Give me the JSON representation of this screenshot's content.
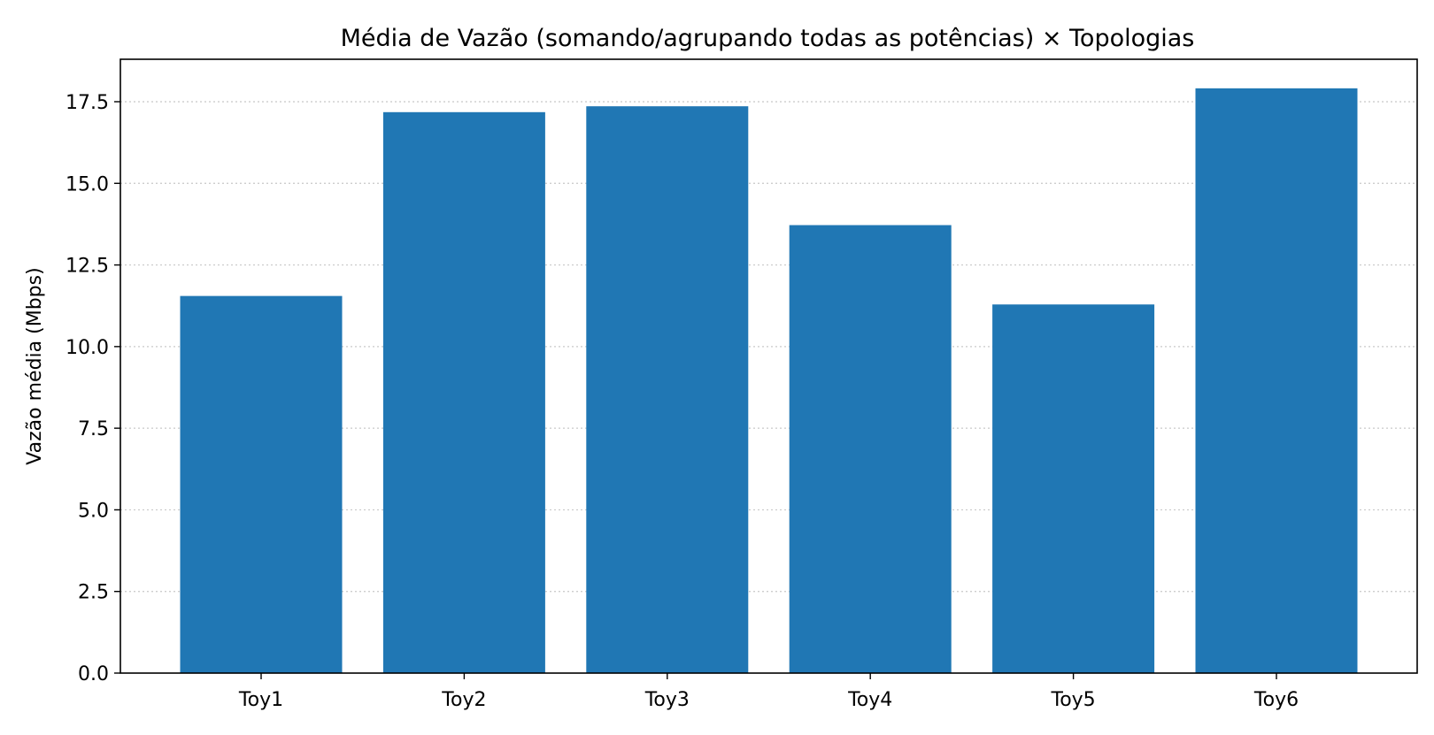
{
  "chart_data": {
    "type": "bar",
    "title": "Média de Vazão (somando/agrupando todas as potências) × Topologias",
    "xlabel": "",
    "ylabel": "Vazão média (Mbps)",
    "categories": [
      "Toy1",
      "Toy2",
      "Toy3",
      "Toy4",
      "Toy5",
      "Toy6"
    ],
    "values": [
      11.55,
      17.18,
      17.36,
      13.72,
      11.29,
      17.91
    ],
    "ylim": [
      0,
      18.8
    ],
    "yticks": [
      0.0,
      2.5,
      5.0,
      7.5,
      10.0,
      12.5,
      15.0,
      17.5
    ],
    "ytick_labels": [
      "0.0",
      "2.5",
      "5.0",
      "7.5",
      "10.0",
      "12.5",
      "15.0",
      "17.5"
    ],
    "grid": "horizontal dotted",
    "legend": "none",
    "colors": {
      "bar": "#2077b4",
      "grid": "#c8c8c8",
      "axis": "#000000"
    }
  }
}
